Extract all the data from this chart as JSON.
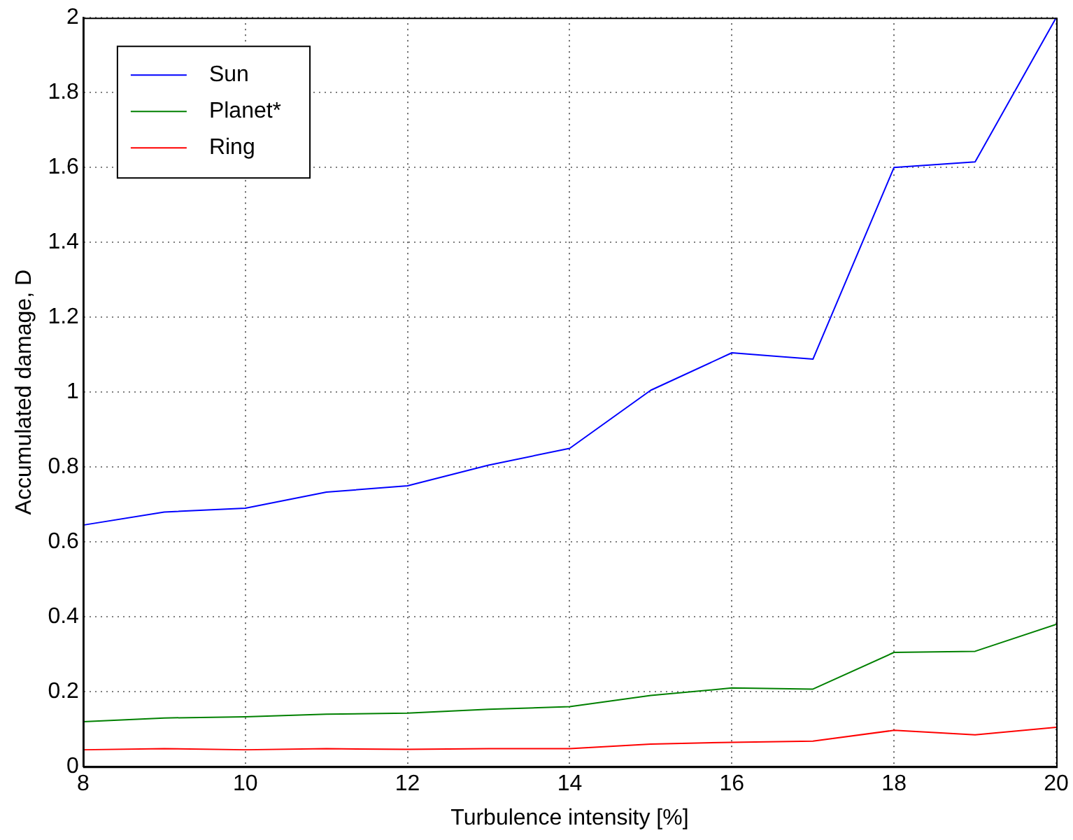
{
  "chart_data": {
    "type": "line",
    "xlabel": "Turbulence intensity [%]",
    "ylabel": "Accumulated damage, D",
    "x": [
      8,
      9,
      10,
      11,
      12,
      13,
      14,
      15,
      16,
      17,
      18,
      19,
      20
    ],
    "series": [
      {
        "name": "Sun",
        "color": "#0000ff",
        "values": [
          0.645,
          0.68,
          0.69,
          0.733,
          0.75,
          0.805,
          0.85,
          1.005,
          1.105,
          1.088,
          1.6,
          1.615,
          2.0
        ]
      },
      {
        "name": "Planet*",
        "color": "#008000",
        "values": [
          0.12,
          0.13,
          0.133,
          0.14,
          0.143,
          0.153,
          0.16,
          0.19,
          0.21,
          0.207,
          0.305,
          0.308,
          0.38
        ]
      },
      {
        "name": "Ring",
        "color": "#ff0000",
        "values": [
          0.045,
          0.048,
          0.045,
          0.048,
          0.046,
          0.048,
          0.048,
          0.06,
          0.065,
          0.068,
          0.097,
          0.085,
          0.105
        ]
      }
    ],
    "xlim": [
      8,
      20
    ],
    "xticks": [
      8,
      10,
      12,
      14,
      16,
      18,
      20
    ],
    "ylim": [
      0,
      2
    ],
    "yticks": [
      0,
      0.2,
      0.4,
      0.6,
      0.8,
      1,
      1.2,
      1.4,
      1.6,
      1.8,
      2
    ],
    "grid": true,
    "legend": "top left",
    "marker": "none",
    "line_style": "solid"
  }
}
